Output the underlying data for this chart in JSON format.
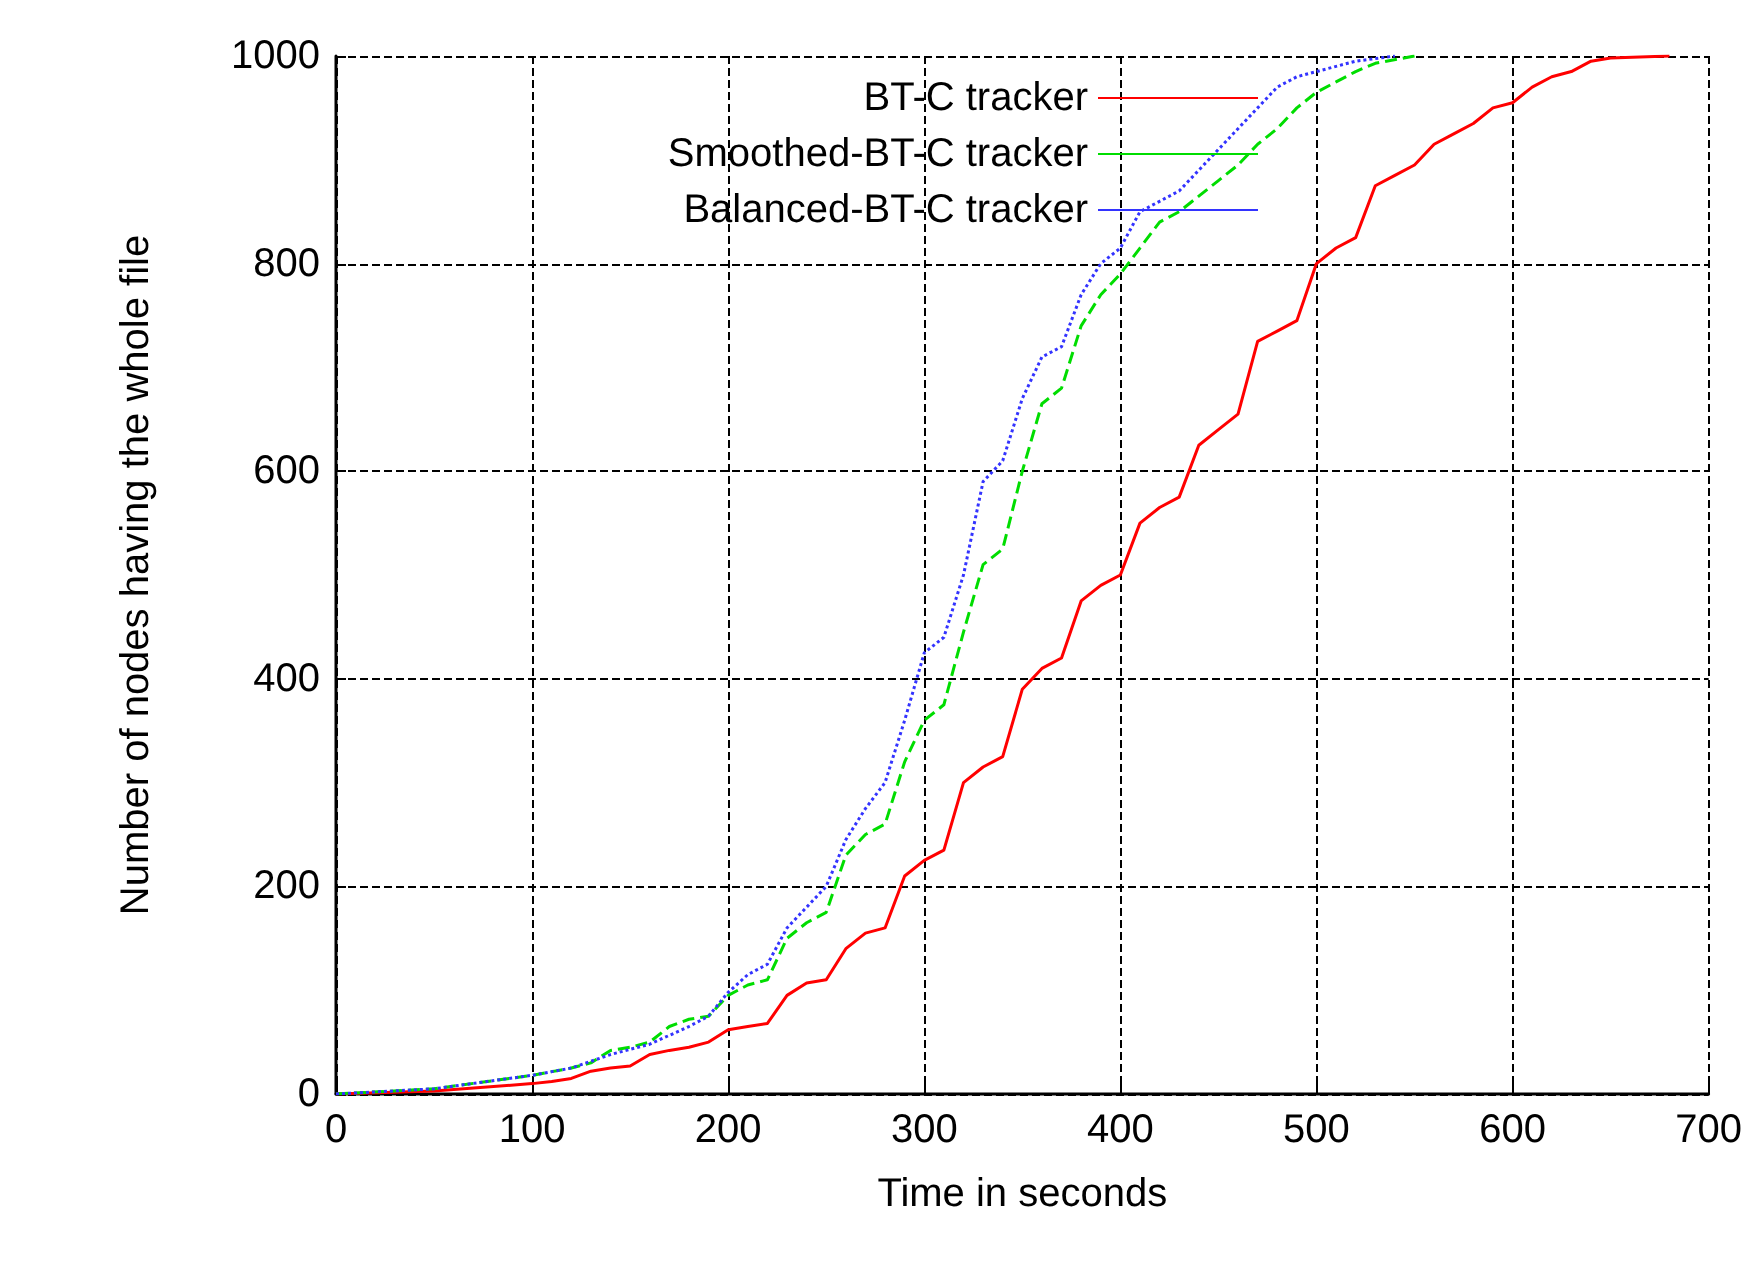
{
  "chart_data": {
    "type": "line",
    "xlabel": "Time in seconds",
    "ylabel": "Number of nodes having the whole file",
    "xlim": [
      0,
      700
    ],
    "ylim": [
      0,
      1000
    ],
    "xticks": [
      0,
      100,
      200,
      300,
      400,
      500,
      600,
      700
    ],
    "yticks": [
      0,
      200,
      400,
      600,
      800,
      1000
    ],
    "grid": true,
    "legend": "top right",
    "marker": "none",
    "series": [
      {
        "name": "BT-C tracker",
        "color": "#ff0000",
        "line_style": "solid",
        "x": [
          0,
          50,
          100,
          110,
          120,
          130,
          140,
          150,
          160,
          170,
          180,
          190,
          200,
          210,
          220,
          230,
          240,
          250,
          260,
          270,
          280,
          290,
          300,
          310,
          320,
          330,
          340,
          350,
          360,
          370,
          380,
          390,
          400,
          410,
          420,
          430,
          440,
          450,
          460,
          470,
          480,
          490,
          500,
          510,
          520,
          530,
          540,
          550,
          560,
          570,
          580,
          590,
          600,
          610,
          620,
          630,
          640,
          650,
          680
        ],
        "values": [
          0,
          3,
          10,
          12,
          15,
          22,
          25,
          27,
          38,
          42,
          45,
          50,
          62,
          65,
          68,
          95,
          107,
          110,
          140,
          155,
          160,
          210,
          225,
          235,
          300,
          315,
          325,
          390,
          410,
          420,
          475,
          490,
          500,
          550,
          565,
          575,
          625,
          640,
          655,
          725,
          735,
          745,
          800,
          815,
          825,
          875,
          885,
          895,
          915,
          925,
          935,
          950,
          955,
          970,
          980,
          985,
          995,
          998,
          1000
        ]
      },
      {
        "name": "Smoothed-BT-C tracker",
        "color": "#00dd00",
        "line_style": "dashed",
        "x": [
          0,
          50,
          100,
          120,
          130,
          140,
          150,
          160,
          170,
          180,
          190,
          200,
          210,
          220,
          230,
          240,
          250,
          260,
          270,
          280,
          290,
          300,
          310,
          320,
          330,
          340,
          350,
          360,
          370,
          380,
          390,
          400,
          410,
          420,
          430,
          440,
          450,
          460,
          470,
          480,
          490,
          500,
          510,
          520,
          530,
          550
        ],
        "values": [
          0,
          5,
          18,
          25,
          30,
          42,
          45,
          50,
          65,
          72,
          75,
          95,
          105,
          110,
          150,
          165,
          175,
          230,
          250,
          260,
          320,
          360,
          375,
          445,
          510,
          525,
          600,
          665,
          680,
          740,
          770,
          790,
          815,
          840,
          850,
          865,
          880,
          895,
          915,
          930,
          950,
          965,
          975,
          985,
          993,
          1000
        ]
      },
      {
        "name": "Balanced-BT-C tracker",
        "color": "#3333ff",
        "line_style": "dotted",
        "x": [
          0,
          50,
          100,
          120,
          140,
          160,
          180,
          190,
          200,
          210,
          220,
          230,
          240,
          250,
          260,
          270,
          280,
          290,
          300,
          310,
          320,
          330,
          340,
          350,
          360,
          370,
          380,
          390,
          400,
          410,
          420,
          430,
          440,
          450,
          460,
          470,
          480,
          490,
          500,
          520,
          540
        ],
        "values": [
          0,
          5,
          18,
          25,
          38,
          48,
          65,
          75,
          98,
          115,
          125,
          160,
          180,
          200,
          245,
          275,
          300,
          360,
          425,
          440,
          500,
          590,
          610,
          670,
          710,
          720,
          770,
          800,
          815,
          850,
          860,
          870,
          890,
          910,
          930,
          950,
          970,
          980,
          985,
          995,
          1000
        ]
      }
    ]
  }
}
